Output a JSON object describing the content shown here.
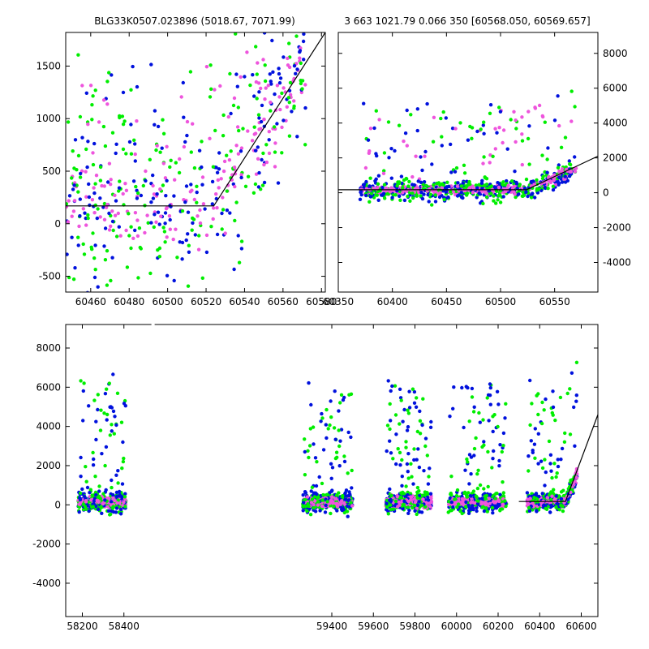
{
  "figure": {
    "title_left": "BLG33K0507.023896 (5018.67, 7071.99)",
    "title_right": "3 663 1021.79 0.066 350 [60568.050, 60569.657]"
  },
  "colors": {
    "series_a": "#00ee00",
    "series_b": "#0011dd",
    "series_c": "#ee55dd",
    "model_line": "#000000"
  },
  "chart_data": [
    {
      "type": "scatter",
      "panel": "zoom",
      "xlim": [
        60447,
        60582
      ],
      "ylim": [
        -650,
        1820
      ],
      "xticks": [
        "60460",
        "60480",
        "60500",
        "60520",
        "60540",
        "60560",
        "60580"
      ],
      "yticks": [
        "-500",
        "0",
        "500",
        "1000",
        "1500"
      ],
      "ytick_side": "left",
      "model": {
        "x": [
          60447,
          60524,
          60582
        ],
        "y": [
          170,
          170,
          1820
        ]
      },
      "grid": false
    },
    {
      "type": "scatter",
      "panel": "season",
      "xlim": [
        60350,
        60590
      ],
      "ylim": [
        -5700,
        9200
      ],
      "xticks": [
        "60350",
        "60400",
        "60450",
        "60500",
        "60550"
      ],
      "yticks": [
        "-4000",
        "-2000",
        "0",
        "2000",
        "4000",
        "6000",
        "8000"
      ],
      "ytick_side": "right",
      "model": {
        "x": [
          60350,
          60524,
          60590
        ],
        "y": [
          170,
          170,
          2100
        ]
      },
      "grid": false
    },
    {
      "type": "scatter",
      "panel": "full",
      "xlim": [
        58120,
        60680
      ],
      "ylim": [
        -5700,
        9200
      ],
      "xticks": [
        "58200",
        "58400",
        "59400",
        "59600",
        "59800",
        "60000",
        "60200",
        "60400",
        "60600"
      ],
      "yticks": [
        "-4000",
        "-2000",
        "0",
        "2000",
        "4000",
        "6000",
        "8000"
      ],
      "ytick_side": "left",
      "gap_label_blank": true,
      "seasons": [
        [
          58180,
          58410
        ],
        [
          59260,
          59500
        ],
        [
          59660,
          59880
        ],
        [
          59960,
          60240
        ],
        [
          60340,
          60580
        ]
      ],
      "model": {
        "x": [
          60300,
          60524,
          60680
        ],
        "y": [
          170,
          170,
          4600
        ]
      },
      "grid": false
    }
  ]
}
